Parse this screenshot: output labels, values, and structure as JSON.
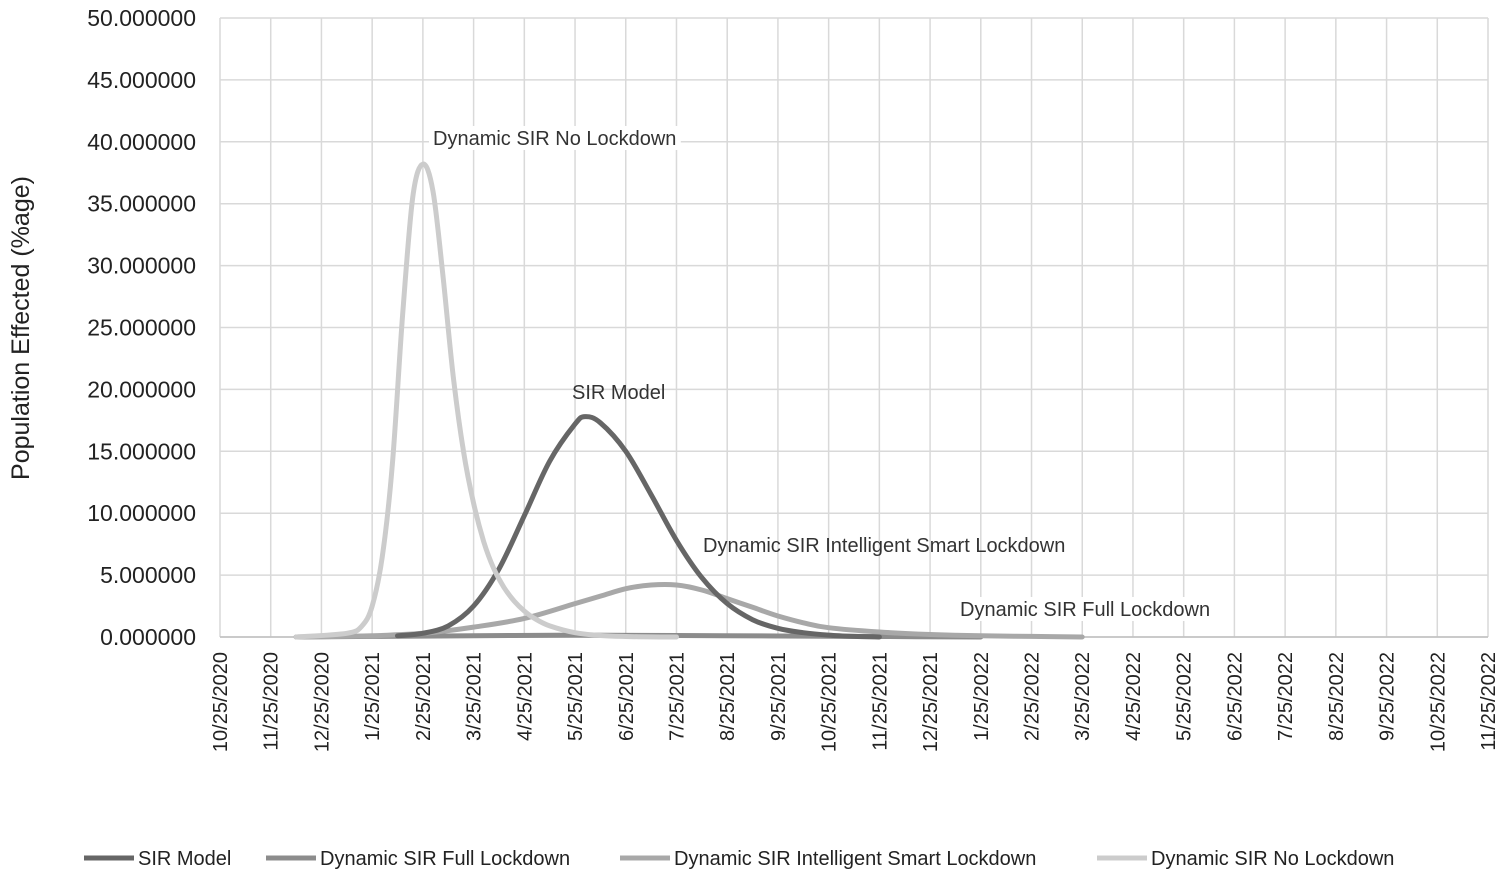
{
  "chart_data": {
    "type": "line",
    "title": "",
    "xlabel": "",
    "ylabel": "Population Effected (%age)",
    "ylim": [
      0,
      50
    ],
    "yticks": [
      "0.000000",
      "5.000000",
      "10.000000",
      "15.000000",
      "20.000000",
      "25.000000",
      "30.000000",
      "35.000000",
      "40.000000",
      "45.000000",
      "50.000000"
    ],
    "xticks": [
      "10/25/2020",
      "11/25/2020",
      "12/25/2020",
      "1/25/2021",
      "2/25/2021",
      "3/25/2021",
      "4/25/2021",
      "5/25/2021",
      "6/25/2021",
      "7/25/2021",
      "8/25/2021",
      "9/25/2021",
      "10/25/2021",
      "11/25/2021",
      "12/25/2021",
      "1/25/2022",
      "2/25/2022",
      "3/25/2022",
      "4/25/2022",
      "5/25/2022",
      "6/25/2022",
      "7/25/2022",
      "8/25/2022",
      "9/25/2022",
      "10/25/2022",
      "11/25/2022"
    ],
    "grid": true,
    "legend": "bottom",
    "series": [
      {
        "name": "SIR Model",
        "color": "#666666",
        "x": [
          3.5,
          4.0,
          4.5,
          5.0,
          5.5,
          6.0,
          6.5,
          7.0,
          7.2,
          7.5,
          8.0,
          8.5,
          9.0,
          9.5,
          10.0,
          10.5,
          11.0,
          11.5,
          12.0,
          12.5,
          13.0
        ],
        "values": [
          0.1,
          0.3,
          0.9,
          2.5,
          5.5,
          9.8,
          14.2,
          17.2,
          17.8,
          17.3,
          15.0,
          11.5,
          7.8,
          4.8,
          2.7,
          1.4,
          0.7,
          0.35,
          0.15,
          0.05,
          0.0
        ]
      },
      {
        "name": "Dynamic SIR Full Lockdown",
        "color": "#8c8c8c",
        "x": [
          1.5,
          3.0,
          5.0,
          7.0,
          9.0,
          11.0,
          13.0,
          15.0
        ],
        "values": [
          0.0,
          0.05,
          0.1,
          0.15,
          0.12,
          0.08,
          0.04,
          0.0
        ]
      },
      {
        "name": "Dynamic SIR Intelligent Smart Lockdown",
        "color": "#a8a8a8",
        "x": [
          1.5,
          3.0,
          4.0,
          5.0,
          6.0,
          7.0,
          7.5,
          8.0,
          8.5,
          9.0,
          9.5,
          10.0,
          10.5,
          11.0,
          11.5,
          12.0,
          13.0,
          14.0,
          15.0,
          16.0,
          17.0
        ],
        "values": [
          0.0,
          0.1,
          0.3,
          0.8,
          1.5,
          2.7,
          3.3,
          3.9,
          4.2,
          4.2,
          3.8,
          3.1,
          2.4,
          1.7,
          1.15,
          0.75,
          0.4,
          0.2,
          0.1,
          0.05,
          0.0
        ]
      },
      {
        "name": "Dynamic SIR No Lockdown",
        "color": "#cccccc",
        "x": [
          1.5,
          2.5,
          2.8,
          3.0,
          3.2,
          3.4,
          3.6,
          3.8,
          4.0,
          4.2,
          4.4,
          4.6,
          4.8,
          5.0,
          5.2,
          5.4,
          5.6,
          5.8,
          6.0,
          6.2,
          6.5,
          7.0,
          7.5,
          8.0,
          8.5,
          9.0
        ],
        "values": [
          0.0,
          0.3,
          0.9,
          2.5,
          6.5,
          14.0,
          26.0,
          35.5,
          38.2,
          36.0,
          29.0,
          21.0,
          15.0,
          10.8,
          7.7,
          5.5,
          4.0,
          2.9,
          2.1,
          1.5,
          0.9,
          0.35,
          0.12,
          0.04,
          0.01,
          0.0
        ]
      }
    ],
    "annotations": [
      {
        "text": "Dynamic SIR No Lockdown",
        "series": "Dynamic SIR No Lockdown"
      },
      {
        "text": "SIR Model",
        "series": "SIR Model"
      },
      {
        "text": "Dynamic SIR Intelligent Smart Lockdown",
        "series": "Dynamic SIR Intelligent Smart Lockdown"
      },
      {
        "text": "Dynamic SIR Full Lockdown",
        "series": "Dynamic SIR Full Lockdown"
      }
    ]
  }
}
